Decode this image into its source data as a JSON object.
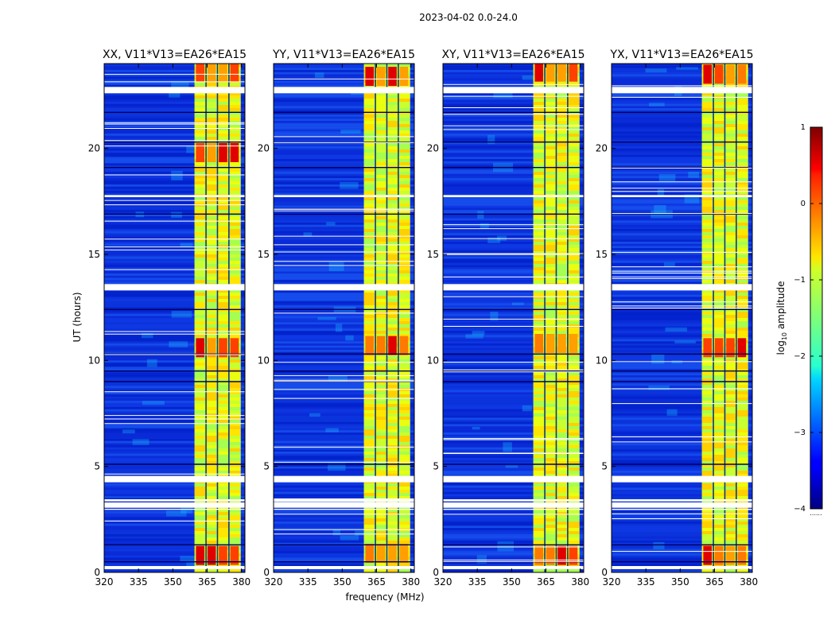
{
  "chart_data": {
    "type": "heatmap",
    "suptitle": "2023-04-02 0.0-24.0",
    "xlabel": "frequency (MHz)",
    "ylabel": "UT (hours)",
    "xlim": [
      320,
      381.5
    ],
    "ylim": [
      0,
      24
    ],
    "xticks": [
      320,
      335,
      350,
      365,
      380
    ],
    "yticks": [
      0,
      5,
      10,
      15,
      20
    ],
    "panels": [
      {
        "title": "XX, V11*V13=EA26*EA15",
        "peaks": [
          0.8,
          10.6,
          19.8,
          23.6
        ]
      },
      {
        "title": "YY, V11*V13=EA26*EA15",
        "peaks": [
          0.9,
          10.7,
          23.4
        ]
      },
      {
        "title": "XY, V11*V13=EA26*EA15",
        "peaks": [
          0.8,
          10.8,
          23.6
        ]
      },
      {
        "title": "YX, V11*V13=EA26*EA15",
        "peaks": [
          0.8,
          10.6,
          23.5
        ]
      }
    ],
    "band_mhz": [
      359.5,
      379.5
    ],
    "band_separators_mhz": [
      364.5,
      369.5,
      374.5
    ],
    "gaps_hours": [
      [
        0.15,
        0.3
      ],
      [
        2.95,
        3.0
      ],
      [
        3.05,
        3.3
      ],
      [
        3.35,
        3.45
      ],
      [
        4.25,
        4.55
      ],
      [
        13.3,
        13.6
      ],
      [
        17.7,
        17.8
      ],
      [
        22.6,
        22.9
      ]
    ],
    "dark_lines_hours": [
      0.5,
      1.3,
      5.1,
      9.0,
      9.5,
      10.3,
      12.4,
      16.9,
      19.1,
      20.3,
      21.7
    ],
    "colorbar": {
      "label": "log10 amplitude",
      "label_main": "log",
      "label_sub": "10",
      "label_rest": " amplitude",
      "ticks": [
        "1",
        "0",
        "−1",
        "−2",
        "−3",
        "−4"
      ],
      "tick_values": [
        1,
        0,
        -1,
        -2,
        -3,
        -4
      ],
      "range": [
        -4,
        1
      ],
      "footer": "......"
    }
  }
}
